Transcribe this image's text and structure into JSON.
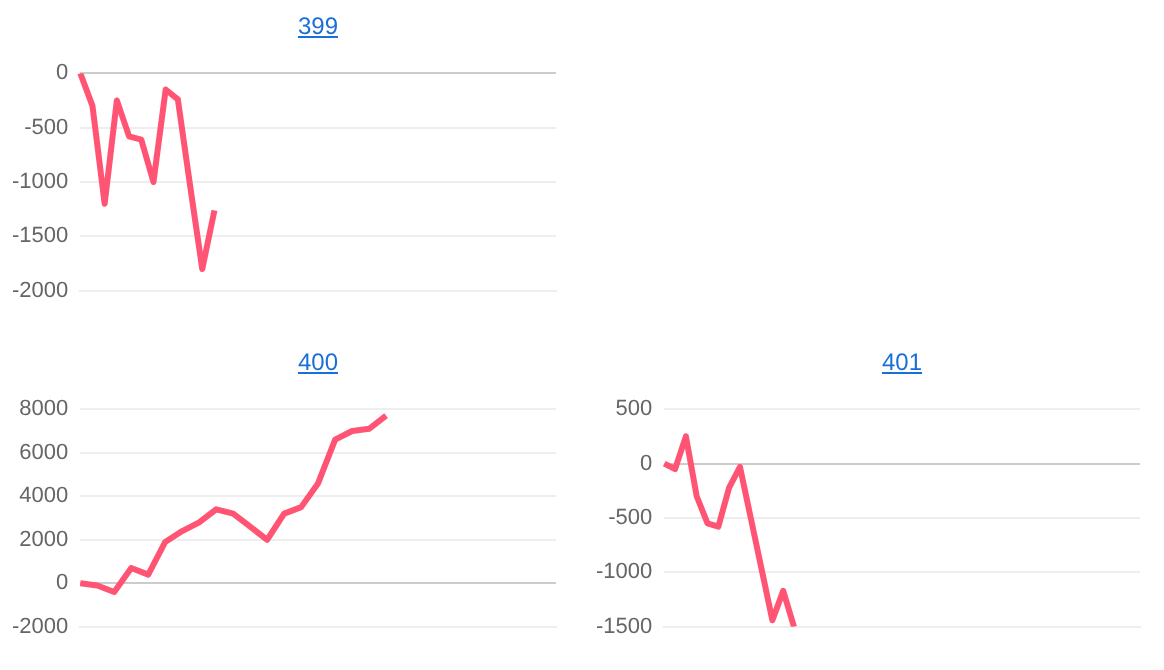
{
  "chart_data": [
    {
      "type": "line",
      "title": "399",
      "categories": [
        null,
        null,
        null,
        null,
        null,
        null,
        null,
        null,
        null,
        null,
        null,
        null,
        null,
        null,
        null,
        null,
        null,
        null,
        null,
        null,
        null,
        null,
        null,
        null,
        null,
        null,
        null,
        null,
        null,
        null,
        null,
        null,
        null,
        null,
        null,
        null,
        null,
        null,
        null,
        null
      ],
      "series": [
        {
          "color": "#ff5473",
          "values": [
            0,
            -300,
            -1200,
            -250,
            -580,
            -610,
            -1000,
            -150,
            -240,
            -1030,
            -1800,
            -1260,
            null,
            null,
            null,
            null,
            null,
            null,
            null,
            null,
            null,
            null,
            null,
            null,
            null,
            null,
            null,
            null,
            null,
            null,
            null,
            null,
            null,
            null,
            null,
            null,
            null,
            null,
            null,
            null
          ]
        }
      ],
      "ylim": [
        -2000,
        0
      ],
      "yticks": [
        -2000,
        -1500,
        -1000,
        -500,
        0
      ],
      "grid": "y",
      "tick_labels": "y",
      "marker": "none",
      "line_style": "solid"
    },
    {
      "type": "line",
      "title": "400",
      "categories": [
        null,
        null,
        null,
        null,
        null,
        null,
        null,
        null,
        null,
        null,
        null,
        null,
        null,
        null,
        null,
        null,
        null,
        null,
        null,
        null,
        null,
        null,
        null,
        null,
        null,
        null,
        null,
        null,
        null
      ],
      "series": [
        {
          "color": "#ff5473",
          "values": [
            0,
            -100,
            -400,
            700,
            400,
            1900,
            2400,
            2800,
            3400,
            3200,
            2600,
            2000,
            3200,
            3500,
            4600,
            6600,
            7000,
            7100,
            7700,
            null,
            null,
            null,
            null,
            null,
            null,
            null,
            null,
            null,
            null
          ]
        }
      ],
      "ylim": [
        -2000,
        8000
      ],
      "yticks": [
        -2000,
        0,
        2000,
        4000,
        6000,
        8000
      ],
      "grid": "y",
      "tick_labels": "y",
      "marker": "none",
      "line_style": "solid"
    },
    {
      "type": "line",
      "title": "401",
      "categories": [
        null,
        null,
        null,
        null,
        null,
        null,
        null,
        null,
        null,
        null,
        null,
        null,
        null,
        null,
        null,
        null,
        null,
        null,
        null,
        null,
        null,
        null,
        null,
        null,
        null,
        null,
        null,
        null,
        null,
        null,
        null,
        null,
        null,
        null,
        null,
        null,
        null,
        null,
        null,
        null,
        null,
        null,
        null,
        null,
        null
      ],
      "series": [
        {
          "color": "#ff5473",
          "values": [
            0,
            -50,
            250,
            -300,
            -550,
            -580,
            -220,
            -30,
            -500,
            -970,
            -1440,
            -1170,
            -1500,
            null,
            null,
            null,
            null,
            null,
            null,
            null,
            null,
            null,
            null,
            null,
            null,
            null,
            null,
            null,
            null,
            null,
            null,
            null,
            null,
            null,
            null,
            null,
            null,
            null,
            null,
            null,
            null,
            null,
            null,
            null,
            null
          ]
        }
      ],
      "ylim": [
        -1500,
        500
      ],
      "yticks": [
        -1500,
        -1000,
        -500,
        0,
        500
      ],
      "grid": "y",
      "tick_labels": "y",
      "marker": "none",
      "line_style": "solid"
    }
  ]
}
